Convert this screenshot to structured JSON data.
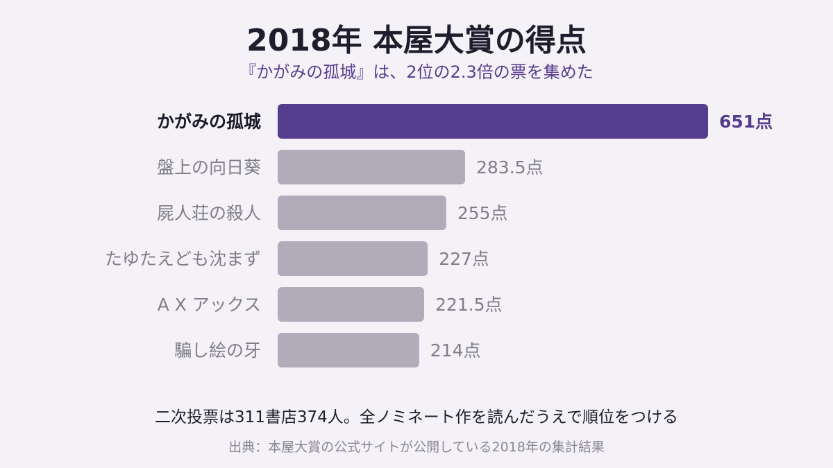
{
  "title": "2018年 本屋大賞の得点",
  "subtitle": "『かがみの孤城』は、2位の2.3倍の票を集めた",
  "footnote": "二次投票は311書店374人。全ノミネート作を読んだうえで順位をつける",
  "source": "出典：本屋大賞の公式サイトが公開している2018年の集計結果",
  "colors": {
    "highlight": "#553c8c",
    "default_bar": "#b0acba",
    "highlight_label": "#1a1826",
    "default_label": "#807d88",
    "highlight_value": "#553c8c",
    "default_value": "#807d88"
  },
  "chart_data": {
    "type": "bar",
    "orientation": "horizontal",
    "categories": [
      "かがみの孤城",
      "盤上の向日葵",
      "屍人荘の殺人",
      "たゆたえども沈まず",
      "A X アックス",
      "騙し絵の牙"
    ],
    "values": [
      651,
      283.5,
      255,
      227,
      221.5,
      214
    ],
    "value_labels": [
      "651点",
      "283.5点",
      "255点",
      "227点",
      "221.5点",
      "214点"
    ],
    "highlight_index": 0,
    "xlim": [
      0,
      651
    ],
    "grid": false,
    "legend": "none"
  }
}
